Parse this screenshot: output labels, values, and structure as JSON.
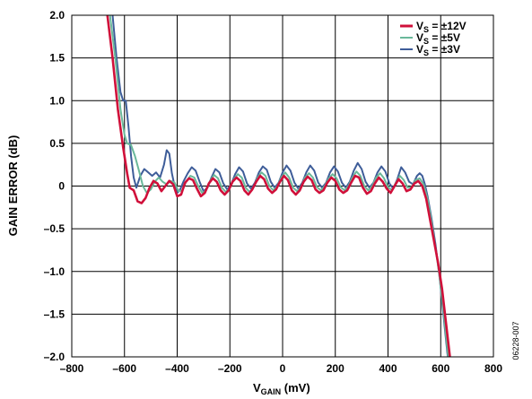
{
  "chart_data": {
    "type": "line",
    "xlabel": "V",
    "xlabel_sub": "GAIN",
    "xlabel_unit": " (mV)",
    "ylabel": "GAIN ERROR (dB)",
    "xlim": [
      -800,
      800
    ],
    "ylim": [
      -2.0,
      2.0
    ],
    "x_ticks": [
      -800,
      -600,
      -400,
      -200,
      0,
      200,
      400,
      600,
      800
    ],
    "x_tick_labels": [
      "–800",
      "–600",
      "–400",
      "–200",
      "0",
      "200",
      "400",
      "600",
      "800"
    ],
    "y_ticks": [
      2.0,
      1.5,
      1.0,
      0.5,
      0,
      -0.5,
      -1.0,
      -1.5,
      -2.0
    ],
    "y_tick_labels": [
      "2.0",
      "1.5",
      "1.0",
      "0.5",
      "0",
      "–0.5",
      "–1.0",
      "–1.5",
      "–2.0"
    ],
    "grid": true,
    "legend_position": "top-right",
    "series": [
      {
        "name": "VS = ±12V",
        "legend_main": "V",
        "legend_sub": "S",
        "legend_rest": " = ±12V",
        "color": "#d0103a",
        "points": [
          [
            -690,
            3.0
          ],
          [
            -665,
            2.0
          ],
          [
            -645,
            1.5
          ],
          [
            -625,
            0.9
          ],
          [
            -605,
            0.45
          ],
          [
            -590,
            0.15
          ],
          [
            -580,
            -0.02
          ],
          [
            -565,
            -0.05
          ],
          [
            -550,
            -0.18
          ],
          [
            -535,
            -0.2
          ],
          [
            -520,
            -0.14
          ],
          [
            -505,
            -0.02
          ],
          [
            -490,
            0.06
          ],
          [
            -475,
            0.03
          ],
          [
            -460,
            -0.06
          ],
          [
            -445,
            0.0
          ],
          [
            -430,
            0.06
          ],
          [
            -415,
            0.02
          ],
          [
            -400,
            -0.12
          ],
          [
            -385,
            -0.1
          ],
          [
            -370,
            0.04
          ],
          [
            -355,
            0.09
          ],
          [
            -340,
            0.07
          ],
          [
            -325,
            -0.03
          ],
          [
            -310,
            -0.12
          ],
          [
            -295,
            -0.08
          ],
          [
            -280,
            0.03
          ],
          [
            -265,
            0.09
          ],
          [
            -250,
            0.05
          ],
          [
            -235,
            -0.05
          ],
          [
            -220,
            -0.1
          ],
          [
            -205,
            -0.05
          ],
          [
            -190,
            0.05
          ],
          [
            -175,
            0.1
          ],
          [
            -160,
            0.06
          ],
          [
            -145,
            -0.05
          ],
          [
            -130,
            -0.1
          ],
          [
            -115,
            -0.04
          ],
          [
            -100,
            0.05
          ],
          [
            -85,
            0.12
          ],
          [
            -70,
            0.08
          ],
          [
            -55,
            -0.03
          ],
          [
            -40,
            -0.08
          ],
          [
            -25,
            -0.04
          ],
          [
            -10,
            0.05
          ],
          [
            5,
            0.12
          ],
          [
            20,
            0.07
          ],
          [
            35,
            -0.05
          ],
          [
            50,
            -0.1
          ],
          [
            65,
            -0.05
          ],
          [
            80,
            0.05
          ],
          [
            95,
            0.11
          ],
          [
            110,
            0.07
          ],
          [
            125,
            -0.04
          ],
          [
            140,
            -0.08
          ],
          [
            155,
            -0.05
          ],
          [
            170,
            0.04
          ],
          [
            185,
            0.1
          ],
          [
            200,
            0.06
          ],
          [
            215,
            -0.04
          ],
          [
            230,
            -0.08
          ],
          [
            245,
            -0.05
          ],
          [
            260,
            0.04
          ],
          [
            275,
            0.12
          ],
          [
            290,
            0.1
          ],
          [
            305,
            -0.02
          ],
          [
            320,
            -0.09
          ],
          [
            335,
            -0.06
          ],
          [
            350,
            0.03
          ],
          [
            365,
            0.1
          ],
          [
            380,
            0.05
          ],
          [
            395,
            -0.03
          ],
          [
            410,
            -0.08
          ],
          [
            425,
            0.0
          ],
          [
            440,
            0.08
          ],
          [
            455,
            0.03
          ],
          [
            470,
            -0.06
          ],
          [
            485,
            -0.04
          ],
          [
            500,
            0.03
          ],
          [
            515,
            0.06
          ],
          [
            530,
            0.0
          ],
          [
            545,
            -0.15
          ],
          [
            560,
            -0.4
          ],
          [
            575,
            -0.65
          ],
          [
            590,
            -0.9
          ],
          [
            605,
            -1.2
          ],
          [
            620,
            -1.6
          ],
          [
            635,
            -2.0
          ],
          [
            650,
            -2.3
          ]
        ]
      },
      {
        "name": "VS = ±5V",
        "legend_main": "V",
        "legend_sub": "S",
        "legend_rest": " = ±5V",
        "color": "#6ab89a",
        "points": [
          [
            -680,
            3.0
          ],
          [
            -655,
            2.0
          ],
          [
            -635,
            1.5
          ],
          [
            -615,
            0.9
          ],
          [
            -600,
            0.6
          ],
          [
            -590,
            0.5
          ],
          [
            -575,
            0.48
          ],
          [
            -560,
            0.35
          ],
          [
            -545,
            0.18
          ],
          [
            -530,
            0.0
          ],
          [
            -515,
            -0.08
          ],
          [
            -500,
            -0.04
          ],
          [
            -485,
            0.05
          ],
          [
            -470,
            0.1
          ],
          [
            -455,
            0.05
          ],
          [
            -440,
            0.02
          ],
          [
            -425,
            0.06
          ],
          [
            -410,
            0.04
          ],
          [
            -395,
            -0.06
          ],
          [
            -380,
            -0.05
          ],
          [
            -365,
            0.06
          ],
          [
            -350,
            0.12
          ],
          [
            -335,
            0.1
          ],
          [
            -320,
            0.0
          ],
          [
            -305,
            -0.08
          ],
          [
            -290,
            -0.05
          ],
          [
            -275,
            0.06
          ],
          [
            -260,
            0.13
          ],
          [
            -245,
            0.09
          ],
          [
            -230,
            -0.02
          ],
          [
            -215,
            -0.07
          ],
          [
            -200,
            -0.02
          ],
          [
            -185,
            0.08
          ],
          [
            -170,
            0.14
          ],
          [
            -155,
            0.1
          ],
          [
            -140,
            -0.02
          ],
          [
            -125,
            -0.07
          ],
          [
            -110,
            -0.01
          ],
          [
            -95,
            0.1
          ],
          [
            -80,
            0.16
          ],
          [
            -65,
            0.12
          ],
          [
            -50,
            0.0
          ],
          [
            -35,
            -0.05
          ],
          [
            -20,
            0.0
          ],
          [
            -5,
            0.1
          ],
          [
            10,
            0.16
          ],
          [
            25,
            0.1
          ],
          [
            40,
            -0.02
          ],
          [
            55,
            -0.06
          ],
          [
            70,
            -0.01
          ],
          [
            85,
            0.1
          ],
          [
            100,
            0.15
          ],
          [
            115,
            0.1
          ],
          [
            130,
            -0.01
          ],
          [
            145,
            -0.05
          ],
          [
            160,
            0.0
          ],
          [
            175,
            0.09
          ],
          [
            190,
            0.14
          ],
          [
            205,
            0.09
          ],
          [
            220,
            -0.01
          ],
          [
            235,
            -0.05
          ],
          [
            250,
            0.0
          ],
          [
            265,
            0.1
          ],
          [
            280,
            0.17
          ],
          [
            295,
            0.12
          ],
          [
            310,
            0.0
          ],
          [
            325,
            -0.05
          ],
          [
            340,
            0.0
          ],
          [
            355,
            0.1
          ],
          [
            370,
            0.15
          ],
          [
            385,
            0.09
          ],
          [
            400,
            -0.01
          ],
          [
            415,
            -0.05
          ],
          [
            430,
            0.04
          ],
          [
            445,
            0.12
          ],
          [
            460,
            0.07
          ],
          [
            475,
            -0.02
          ],
          [
            490,
            -0.01
          ],
          [
            505,
            0.07
          ],
          [
            520,
            0.09
          ],
          [
            535,
            0.02
          ],
          [
            550,
            -0.15
          ],
          [
            565,
            -0.42
          ],
          [
            580,
            -0.72
          ],
          [
            595,
            -1.05
          ],
          [
            610,
            -1.45
          ],
          [
            625,
            -1.9
          ],
          [
            640,
            -2.3
          ]
        ]
      },
      {
        "name": "VS = ±3V",
        "legend_main": "V",
        "legend_sub": "S",
        "legend_rest": " = ±3V",
        "color": "#3e5d99",
        "points": [
          [
            -670,
            3.0
          ],
          [
            -645,
            2.0
          ],
          [
            -630,
            1.5
          ],
          [
            -615,
            1.1
          ],
          [
            -605,
            1.0
          ],
          [
            -595,
            1.0
          ],
          [
            -585,
            0.7
          ],
          [
            -575,
            0.35
          ],
          [
            -565,
            0.1
          ],
          [
            -555,
            -0.02
          ],
          [
            -540,
            0.12
          ],
          [
            -525,
            0.2
          ],
          [
            -510,
            0.16
          ],
          [
            -495,
            0.12
          ],
          [
            -480,
            0.16
          ],
          [
            -465,
            0.1
          ],
          [
            -450,
            0.25
          ],
          [
            -440,
            0.42
          ],
          [
            -430,
            0.38
          ],
          [
            -420,
            0.15
          ],
          [
            -410,
            0.0
          ],
          [
            -400,
            -0.08
          ],
          [
            -390,
            -0.05
          ],
          [
            -375,
            0.06
          ],
          [
            -360,
            0.15
          ],
          [
            -345,
            0.22
          ],
          [
            -330,
            0.18
          ],
          [
            -315,
            0.05
          ],
          [
            -300,
            -0.06
          ],
          [
            -285,
            -0.02
          ],
          [
            -270,
            0.1
          ],
          [
            -255,
            0.2
          ],
          [
            -240,
            0.16
          ],
          [
            -225,
            0.03
          ],
          [
            -210,
            -0.04
          ],
          [
            -195,
            0.02
          ],
          [
            -180,
            0.14
          ],
          [
            -165,
            0.22
          ],
          [
            -150,
            0.17
          ],
          [
            -135,
            0.03
          ],
          [
            -120,
            -0.03
          ],
          [
            -105,
            0.04
          ],
          [
            -90,
            0.16
          ],
          [
            -75,
            0.23
          ],
          [
            -60,
            0.19
          ],
          [
            -45,
            0.05
          ],
          [
            -30,
            -0.02
          ],
          [
            -15,
            0.04
          ],
          [
            0,
            0.16
          ],
          [
            15,
            0.24
          ],
          [
            30,
            0.18
          ],
          [
            45,
            0.04
          ],
          [
            60,
            -0.03
          ],
          [
            75,
            0.04
          ],
          [
            90,
            0.16
          ],
          [
            105,
            0.24
          ],
          [
            120,
            0.18
          ],
          [
            135,
            0.04
          ],
          [
            150,
            -0.02
          ],
          [
            165,
            0.04
          ],
          [
            180,
            0.16
          ],
          [
            195,
            0.23
          ],
          [
            210,
            0.17
          ],
          [
            225,
            0.04
          ],
          [
            240,
            -0.02
          ],
          [
            255,
            0.05
          ],
          [
            270,
            0.18
          ],
          [
            285,
            0.27
          ],
          [
            300,
            0.2
          ],
          [
            315,
            0.05
          ],
          [
            330,
            -0.02
          ],
          [
            345,
            0.04
          ],
          [
            360,
            0.16
          ],
          [
            375,
            0.23
          ],
          [
            390,
            0.17
          ],
          [
            405,
            0.03
          ],
          [
            420,
            -0.03
          ],
          [
            435,
            0.08
          ],
          [
            450,
            0.22
          ],
          [
            465,
            0.16
          ],
          [
            480,
            0.05
          ],
          [
            495,
            0.02
          ],
          [
            510,
            0.12
          ],
          [
            520,
            0.15
          ],
          [
            530,
            0.12
          ],
          [
            540,
            0.02
          ],
          [
            550,
            -0.12
          ],
          [
            565,
            -0.38
          ],
          [
            580,
            -0.68
          ],
          [
            595,
            -1.05
          ],
          [
            610,
            -1.5
          ],
          [
            625,
            -1.95
          ],
          [
            640,
            -2.3
          ]
        ]
      }
    ]
  },
  "side_note": "06228-007"
}
